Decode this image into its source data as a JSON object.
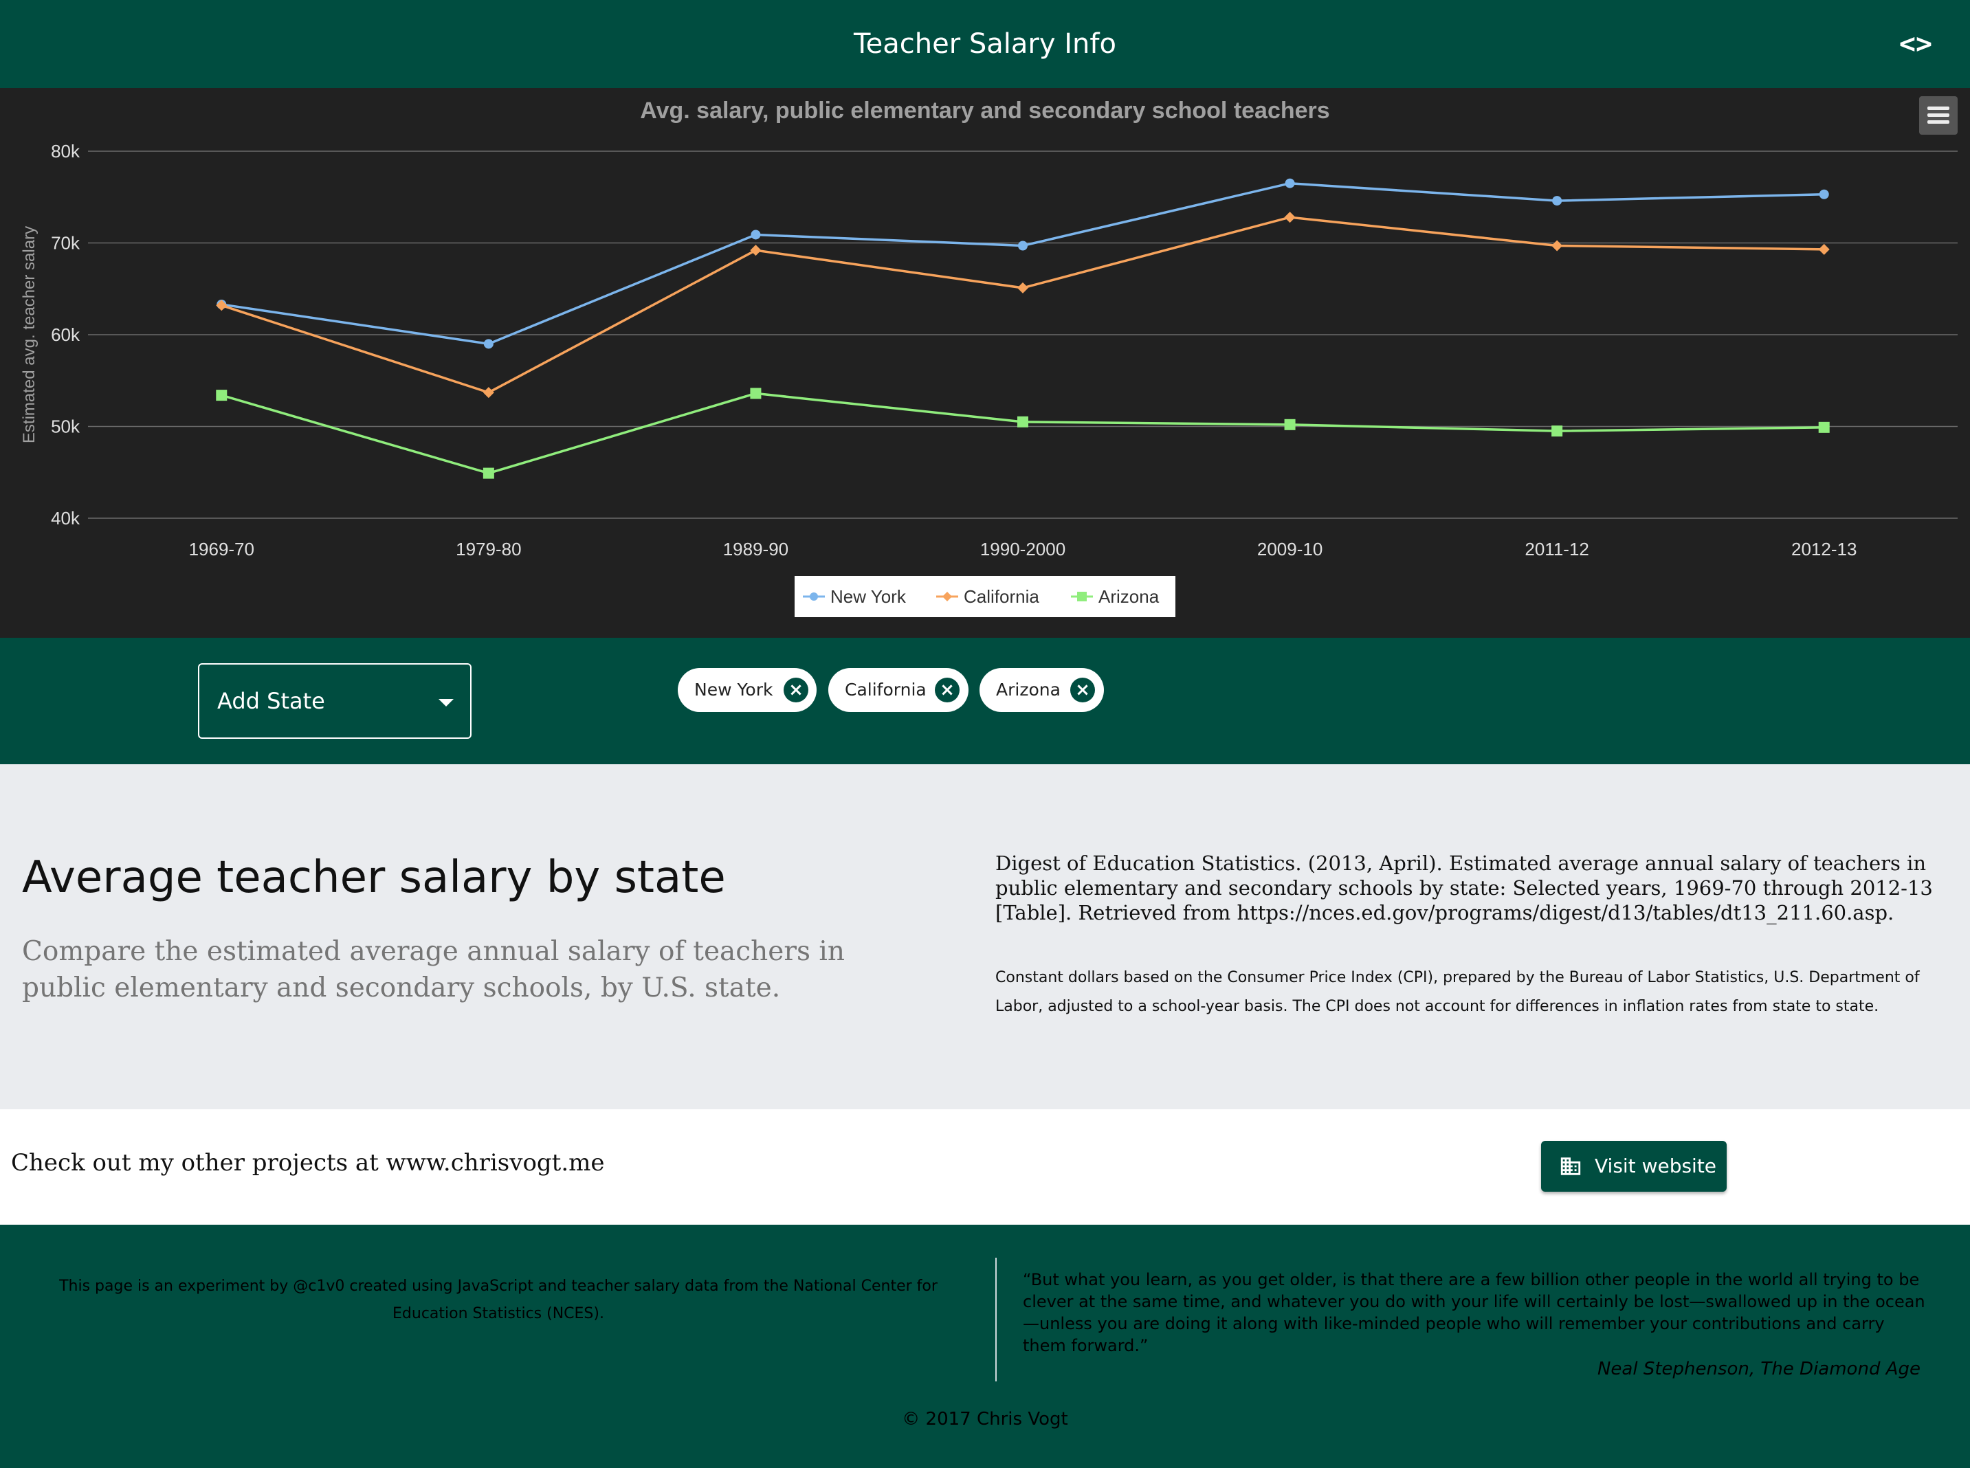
{
  "appbar": {
    "title": "Teacher Salary Info",
    "code_icon": "code-icon"
  },
  "chart_data": {
    "type": "line",
    "title": "Avg. salary, public elementary and secondary school teachers",
    "xlabel": "",
    "ylabel": "Estimated avg. teacher salary",
    "categories": [
      "1969-70",
      "1979-80",
      "1989-90",
      "1990-2000",
      "2009-10",
      "2011-12",
      "2012-13"
    ],
    "ylim": [
      40000,
      80000
    ],
    "yticks": [
      40000,
      50000,
      60000,
      70000,
      80000
    ],
    "ytick_labels": [
      "40k",
      "50k",
      "60k",
      "70k",
      "80k"
    ],
    "grid": true,
    "legend_position": "bottom-center",
    "series": [
      {
        "name": "New York",
        "color": "#7cb5ec",
        "marker": "circle",
        "values": [
          63300,
          59000,
          70900,
          69700,
          76500,
          74600,
          75300
        ]
      },
      {
        "name": "California",
        "color": "#f7a35c",
        "marker": "diamond",
        "values": [
          63200,
          53700,
          69200,
          65100,
          72800,
          69700,
          69300
        ]
      },
      {
        "name": "Arizona",
        "color": "#90ed7d",
        "marker": "square",
        "values": [
          53400,
          44900,
          53600,
          50500,
          50200,
          49500,
          49900
        ]
      }
    ]
  },
  "chart_menu": {
    "icon": "hamburger-menu-icon"
  },
  "state_selector": {
    "label": "Add State",
    "chips": [
      "New York",
      "California",
      "Arizona"
    ]
  },
  "info": {
    "title": "Average teacher salary by state",
    "subtitle": "Compare the estimated average annual salary of teachers in public elementary and secondary schools, by U.S. state.",
    "citation": "Digest of Education Statistics. (2013, April). Estimated average annual salary of teachers in public elementary and secondary schools by state: Selected years, 1969-70 through 2012-13 [Table]. Retrieved from https://nces.ed.gov/programs/digest/d13/tables/dt13_211.60.asp.",
    "cpi_note": "Constant dollars based on the Consumer Price Index (CPI), prepared by the Bureau of Labor Statistics, U.S. Department of Labor, adjusted to a school-year basis. The CPI does not account for differences in inflation rates from state to state."
  },
  "projects": {
    "text": "Check out my other projects at www.chrisvogt.me",
    "button_label": "Visit website",
    "button_icon": "building-icon"
  },
  "footer": {
    "about": "This page is an experiment by @c1v0 created using JavaScript and teacher salary data from the National Center for Education Statistics (NCES).",
    "quote": "“But what you learn, as you get older, is that there are a few billion other people in the world all trying to be clever at the same time, and whatever you do with your life will certainly be lost—swallowed up in the ocean—unless you are doing it along with like-minded people who will remember your contributions and carry them forward.”",
    "quote_attribution": "Neal Stephenson, The Diamond Age",
    "copyright": "© 2017 Chris Vogt"
  }
}
